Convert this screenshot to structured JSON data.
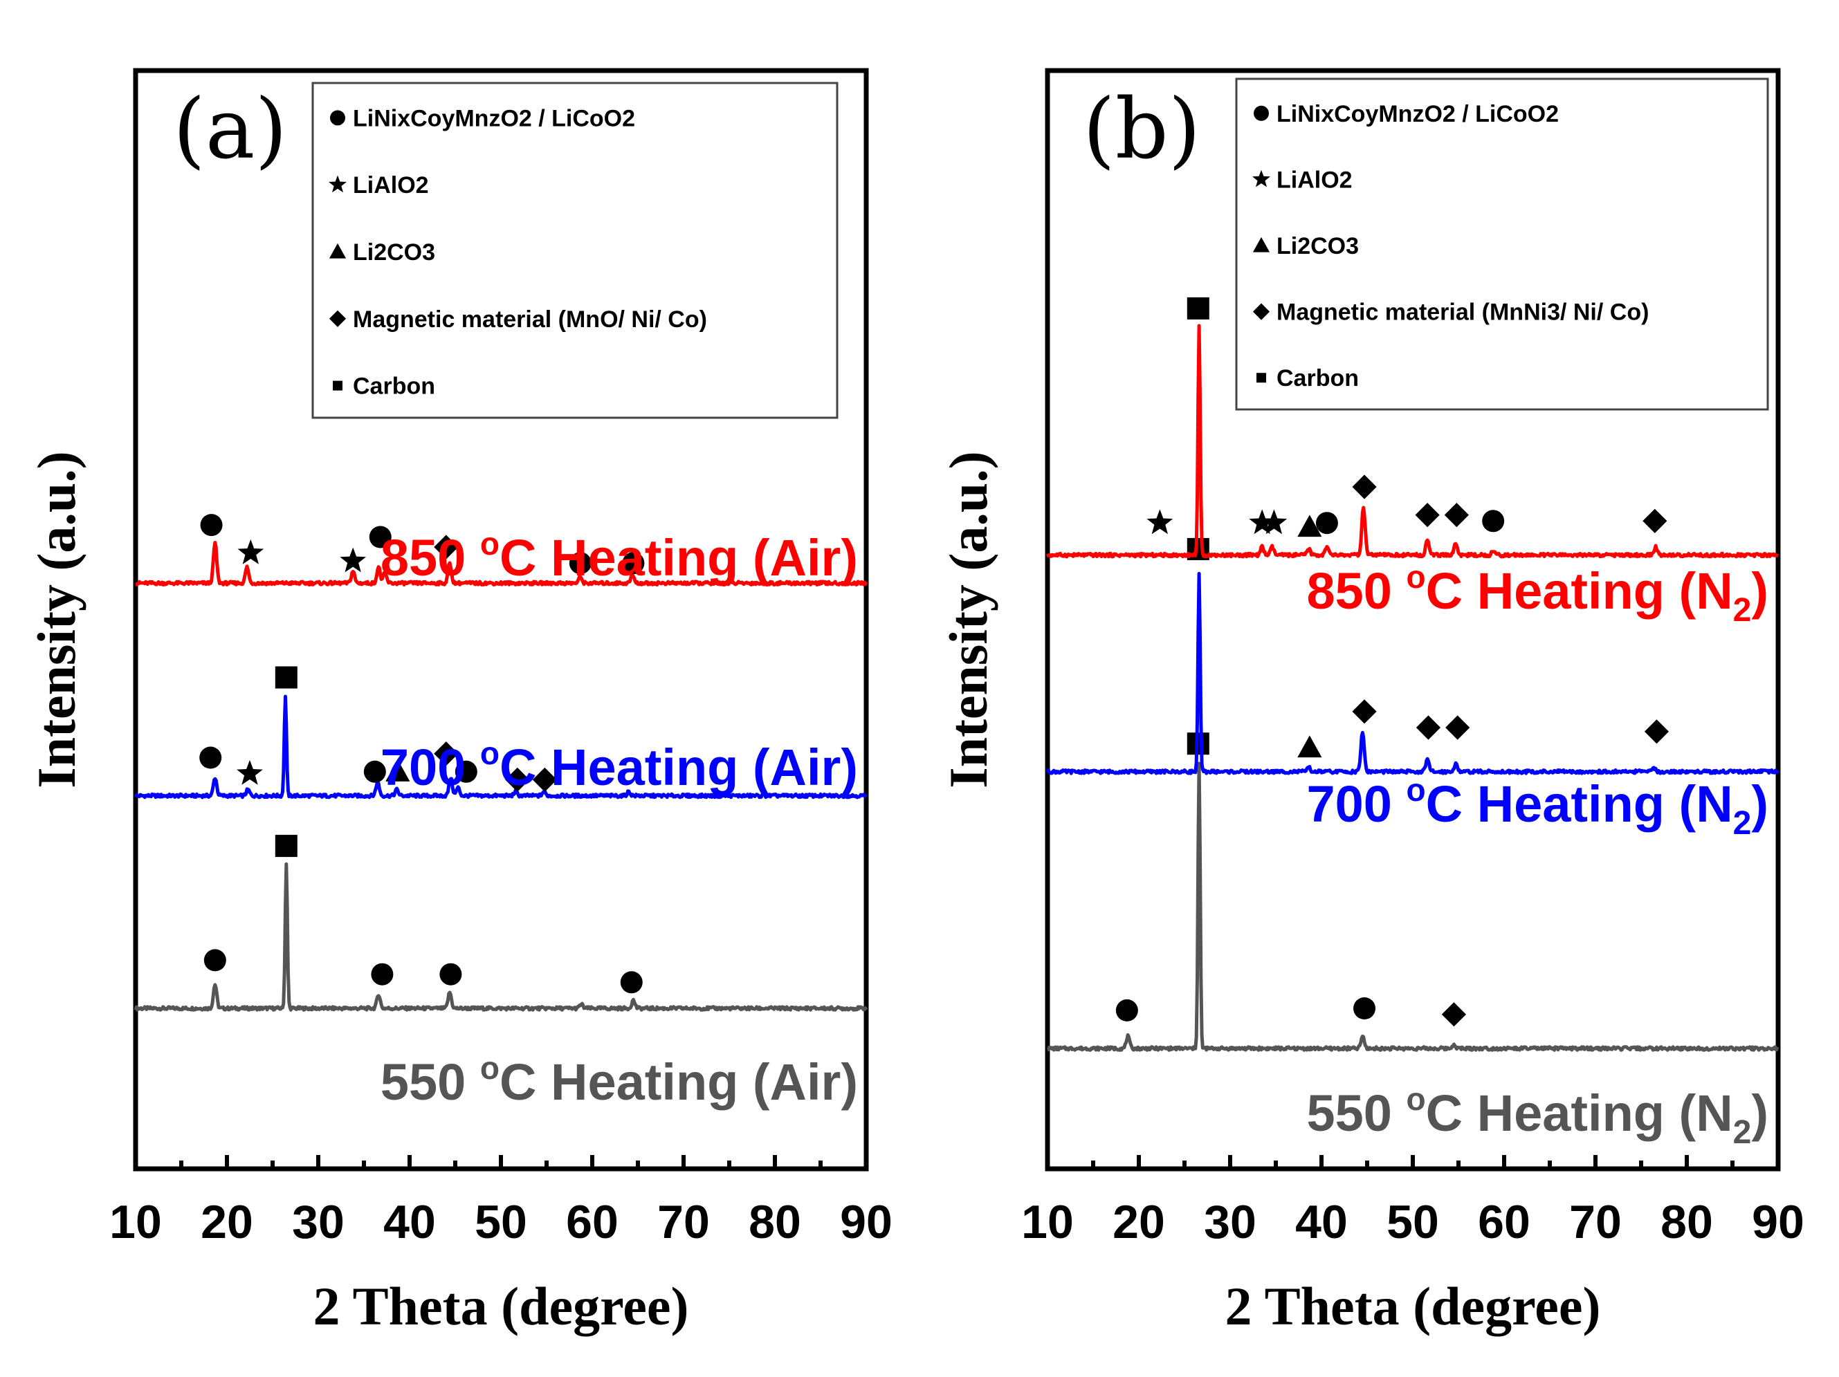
{
  "chart_data": [
    {
      "type": "line",
      "panel_label": "(a)",
      "xlabel": "2 Theta (degree)",
      "ylabel": "Intensity (a.u.)",
      "xlim": [
        10,
        90
      ],
      "xticks": [
        "10",
        "20",
        "30",
        "40",
        "50",
        "60",
        "70",
        "80",
        "90"
      ],
      "legend": [
        {
          "marker": "circle",
          "text": "LiNixCoyMnzO2 / LiCoO2"
        },
        {
          "marker": "star",
          "text": "LiAlO2"
        },
        {
          "marker": "triangle",
          "text": "Li2CO3"
        },
        {
          "marker": "diamond",
          "text": "Magnetic material (MnO/ Ni/ Co)"
        },
        {
          "marker": "square",
          "text": "Carbon"
        }
      ],
      "series": [
        {
          "name": "550 °C Heating (Air)",
          "label_prefix": "550 ",
          "label_suffix": "C Heating (Air)",
          "label_sub": "",
          "color": "#555555",
          "baseline": 4.0,
          "peaks": [
            [
              18.7,
              0.6
            ],
            [
              26.5,
              3.6
            ],
            [
              36.6,
              0.35
            ],
            [
              44.4,
              0.4
            ],
            [
              58.8,
              0.1
            ],
            [
              64.5,
              0.2
            ]
          ],
          "markers": [
            {
              "x": 18.7,
              "shape": "circle",
              "y": 1.2
            },
            {
              "x": 26.5,
              "shape": "square",
              "y": 4.05
            },
            {
              "x": 37.0,
              "shape": "circle",
              "y": 0.85
            },
            {
              "x": 44.5,
              "shape": "circle",
              "y": 0.85
            },
            {
              "x": 64.3,
              "shape": "circle",
              "y": 0.65
            }
          ]
        },
        {
          "name": "700 °C Heating (Air)",
          "label_prefix": "700 ",
          "label_suffix": "C Heating (Air)",
          "label_sub": "",
          "color": "#0000ff",
          "baseline": 9.3,
          "peaks": [
            [
              18.7,
              0.45
            ],
            [
              22.3,
              0.15
            ],
            [
              26.4,
              2.5
            ],
            [
              36.5,
              0.35
            ],
            [
              38.6,
              0.15
            ],
            [
              44.5,
              0.45
            ],
            [
              45.3,
              0.2
            ],
            [
              51.6,
              0.1
            ],
            [
              54.7,
              0.1
            ],
            [
              64.0,
              0.1
            ]
          ],
          "markers": [
            {
              "x": 18.2,
              "shape": "circle",
              "y": 0.95
            },
            {
              "x": 22.5,
              "shape": "star",
              "y": 0.55
            },
            {
              "x": 26.5,
              "shape": "square",
              "y": 2.95
            },
            {
              "x": 36.2,
              "shape": "circle",
              "y": 0.6
            },
            {
              "x": 38.7,
              "shape": "triangle",
              "y": 0.6
            },
            {
              "x": 44.0,
              "shape": "diamond",
              "y": 1.05
            },
            {
              "x": 46.2,
              "shape": "circle",
              "y": 0.6
            },
            {
              "x": 51.8,
              "shape": "diamond",
              "y": 0.4
            },
            {
              "x": 54.8,
              "shape": "diamond",
              "y": 0.4
            }
          ]
        },
        {
          "name": "850 °C Heating (Air)",
          "label_prefix": "850 ",
          "label_suffix": "C Heating (Air)",
          "label_sub": "",
          "color": "#ff0000",
          "baseline": 14.6,
          "peaks": [
            [
              18.7,
              1.0
            ],
            [
              22.2,
              0.4
            ],
            [
              33.8,
              0.3
            ],
            [
              36.6,
              0.4
            ],
            [
              37.3,
              0.25
            ],
            [
              44.4,
              0.5
            ],
            [
              58.7,
              0.15
            ],
            [
              64.4,
              0.2
            ]
          ],
          "markers": [
            {
              "x": 18.3,
              "shape": "circle",
              "y": 1.45
            },
            {
              "x": 22.6,
              "shape": "star",
              "y": 0.75
            },
            {
              "x": 33.8,
              "shape": "star",
              "y": 0.55
            },
            {
              "x": 36.8,
              "shape": "circle",
              "y": 1.15
            },
            {
              "x": 44.0,
              "shape": "diamond",
              "y": 0.9
            },
            {
              "x": 58.7,
              "shape": "circle",
              "y": 0.5
            },
            {
              "x": 64.5,
              "shape": "circle",
              "y": 0.5
            }
          ]
        }
      ]
    },
    {
      "type": "line",
      "panel_label": "(b)",
      "xlabel": "2 Theta (degree)",
      "ylabel": "Intensity (a.u.)",
      "xlim": [
        10,
        90
      ],
      "xticks": [
        "10",
        "20",
        "30",
        "40",
        "50",
        "60",
        "70",
        "80",
        "90"
      ],
      "legend": [
        {
          "marker": "circle",
          "text": "LiNixCoyMnzO2 / LiCoO2"
        },
        {
          "marker": "star",
          "text": "LiAlO2"
        },
        {
          "marker": "triangle",
          "text": "Li2CO3"
        },
        {
          "marker": "diamond",
          "text": "Magnetic material (MnNi3/ Ni/ Co)"
        },
        {
          "marker": "square",
          "text": "Carbon"
        }
      ],
      "series": [
        {
          "name": "550 °C Heating (N2)",
          "label_prefix": "550 ",
          "label_suffix": "C Heating (N",
          "label_sub": "2",
          "color": "#555555",
          "baseline": 3.0,
          "peaks": [
            [
              18.8,
              0.3
            ],
            [
              26.6,
              7.1
            ],
            [
              44.5,
              0.3
            ],
            [
              54.5,
              0.1
            ]
          ],
          "markers": [
            {
              "x": 18.7,
              "shape": "circle",
              "y": 0.95
            },
            {
              "x": 26.5,
              "shape": "square",
              "y": 7.6
            },
            {
              "x": 44.7,
              "shape": "circle",
              "y": 1.0
            },
            {
              "x": 54.5,
              "shape": "diamond",
              "y": 0.85
            }
          ]
        },
        {
          "name": "700 °C Heating (N2)",
          "label_prefix": "700 ",
          "label_suffix": "C Heating (N",
          "label_sub": "2",
          "color": "#0000ff",
          "baseline": 9.9,
          "peaks": [
            [
              26.6,
              4.9
            ],
            [
              38.6,
              0.1
            ],
            [
              44.5,
              1.0
            ],
            [
              51.6,
              0.3
            ],
            [
              54.7,
              0.2
            ],
            [
              76.4,
              0.1
            ]
          ],
          "markers": [
            {
              "x": 26.5,
              "shape": "square",
              "y": 5.55
            },
            {
              "x": 38.7,
              "shape": "triangle",
              "y": 0.6
            },
            {
              "x": 44.7,
              "shape": "diamond",
              "y": 1.5
            },
            {
              "x": 51.7,
              "shape": "diamond",
              "y": 1.1
            },
            {
              "x": 54.9,
              "shape": "diamond",
              "y": 1.1
            },
            {
              "x": 76.7,
              "shape": "diamond",
              "y": 1.0
            }
          ]
        },
        {
          "name": "850 °C Heating (N2)",
          "label_prefix": "850 ",
          "label_suffix": "C Heating (N",
          "label_sub": "2",
          "color": "#ff0000",
          "baseline": 15.3,
          "peaks": [
            [
              26.6,
              5.7
            ],
            [
              33.5,
              0.2
            ],
            [
              34.6,
              0.2
            ],
            [
              38.6,
              0.15
            ],
            [
              40.6,
              0.2
            ],
            [
              44.6,
              1.2
            ],
            [
              51.6,
              0.4
            ],
            [
              54.7,
              0.3
            ],
            [
              58.8,
              0.1
            ],
            [
              76.6,
              0.2
            ]
          ],
          "markers": [
            {
              "x": 26.5,
              "shape": "square",
              "y": 6.15
            },
            {
              "x": 22.3,
              "shape": "star",
              "y": 0.8
            },
            {
              "x": 33.5,
              "shape": "star",
              "y": 0.8
            },
            {
              "x": 34.8,
              "shape": "star",
              "y": 0.8
            },
            {
              "x": 38.7,
              "shape": "triangle",
              "y": 0.7
            },
            {
              "x": 40.6,
              "shape": "circle",
              "y": 0.8
            },
            {
              "x": 44.7,
              "shape": "diamond",
              "y": 1.7
            },
            {
              "x": 51.6,
              "shape": "diamond",
              "y": 1.0
            },
            {
              "x": 54.8,
              "shape": "diamond",
              "y": 1.0
            },
            {
              "x": 58.8,
              "shape": "circle",
              "y": 0.85
            },
            {
              "x": 76.5,
              "shape": "diamond",
              "y": 0.85
            }
          ]
        }
      ]
    }
  ]
}
